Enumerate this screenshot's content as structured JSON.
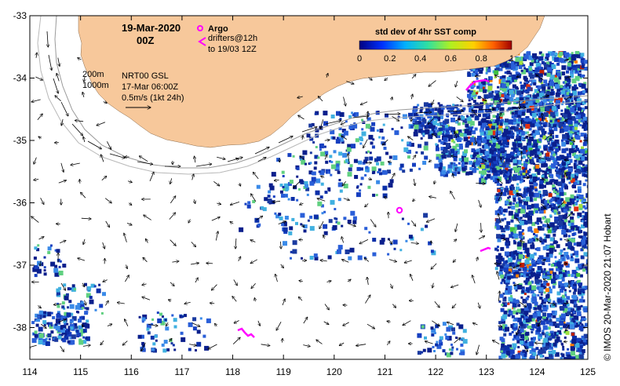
{
  "header": {
    "date": "19-Mar-2020",
    "time": "00Z"
  },
  "legend": {
    "argo_label": "Argo",
    "drifters_line1": "drifters@12h",
    "drifters_line2": "to 19/03 12Z",
    "isobath_200": "200m",
    "isobath_1000": "1000m",
    "current_source": "NRT00 GSL",
    "current_time": "17-Mar 06:00Z",
    "vector_scale": "0.5m/s (1kt 24h)"
  },
  "colorbar": {
    "title": "std dev of 4hr SST comp",
    "ticks": [
      "0",
      "0.2",
      "0.4",
      "0.6",
      "0.8",
      "1"
    ]
  },
  "axes": {
    "x_ticks": [
      "114",
      "115",
      "116",
      "117",
      "118",
      "119",
      "120",
      "121",
      "122",
      "123",
      "124",
      "125"
    ],
    "y_ticks": [
      "-33",
      "-34",
      "-35",
      "-36",
      "-37",
      "-38"
    ]
  },
  "credit": "© IMOS 20-Mar-2020 21:07 Hobart",
  "colors": {
    "land": "#f7c89b",
    "argo": "#ff00ff",
    "sst_low": "#0a1f8c",
    "sst_mid": "#3a6fd8",
    "sst_high": "#e03010"
  }
}
